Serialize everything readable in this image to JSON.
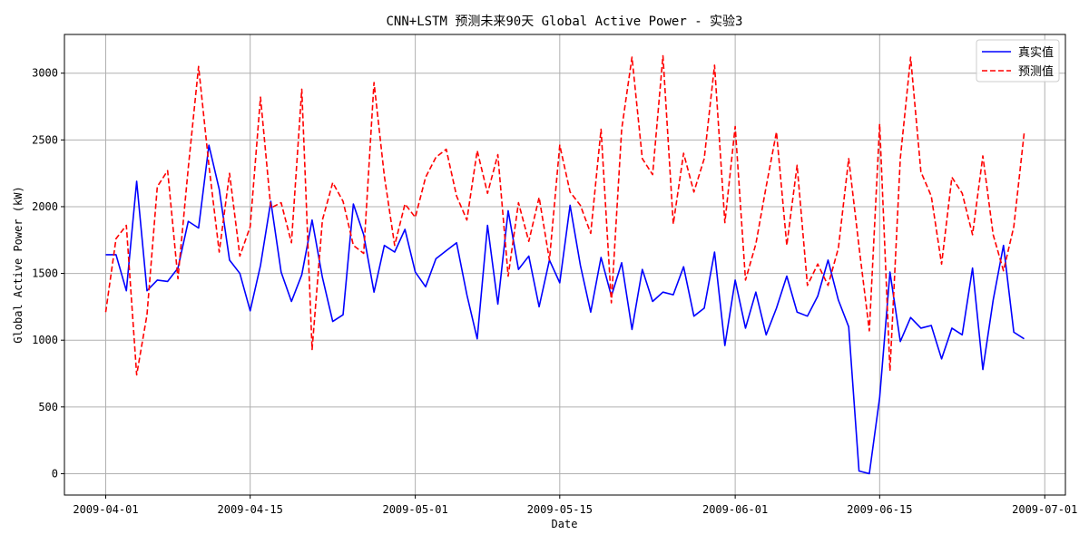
{
  "chart_data": {
    "type": "line",
    "title": "CNN+LSTM 预测未来90天 Global Active Power - 实验3",
    "xlabel": "Date",
    "ylabel": "Global Active Power (kW)",
    "x_start": "2009-04-01",
    "x_ticks": [
      "2009-04-01",
      "2009-04-15",
      "2009-05-01",
      "2009-05-15",
      "2009-06-01",
      "2009-06-15",
      "2009-07-01"
    ],
    "xlim": [
      "2009-03-28",
      "2009-07-03"
    ],
    "y_ticks": [
      0,
      500,
      1000,
      1500,
      2000,
      2500,
      3000
    ],
    "ylim": [
      -160,
      3290
    ],
    "grid": true,
    "legend_position": "top-right",
    "series": [
      {
        "name": "真实值",
        "color": "#0000ff",
        "style": "solid",
        "values": [
          1640,
          1640,
          1370,
          2190,
          1370,
          1450,
          1440,
          1540,
          1890,
          1840,
          2460,
          2130,
          1600,
          1500,
          1220,
          1560,
          2040,
          1510,
          1290,
          1490,
          1900,
          1470,
          1140,
          1190,
          2020,
          1790,
          1360,
          1710,
          1660,
          1830,
          1510,
          1400,
          1610,
          1670,
          1730,
          1340,
          1010,
          1860,
          1270,
          1970,
          1530,
          1630,
          1250,
          1600,
          1430,
          2010,
          1560,
          1210,
          1620,
          1330,
          1580,
          1080,
          1530,
          1290,
          1360,
          1340,
          1550,
          1180,
          1240,
          1660,
          960,
          1450,
          1090,
          1360,
          1040,
          1240,
          1480,
          1210,
          1180,
          1330,
          1600,
          1300,
          1100,
          20,
          0,
          570,
          1510,
          990,
          1170,
          1090,
          1110,
          860,
          1090,
          1040,
          1540,
          780,
          1300,
          1710,
          1060,
          1010
        ]
      },
      {
        "name": "预测值",
        "color": "#ff0000",
        "style": "dashed",
        "values": [
          1210,
          1760,
          1860,
          740,
          1190,
          2150,
          2270,
          1460,
          2290,
          3050,
          2310,
          1660,
          2250,
          1630,
          1850,
          2820,
          1990,
          2030,
          1730,
          2880,
          930,
          1900,
          2180,
          2040,
          1710,
          1650,
          2930,
          2230,
          1710,
          2020,
          1920,
          2220,
          2370,
          2430,
          2080,
          1900,
          2420,
          2100,
          2390,
          1480,
          2030,
          1740,
          2070,
          1600,
          2460,
          2110,
          2010,
          1800,
          2580,
          1280,
          2580,
          3120,
          2360,
          2240,
          3130,
          1870,
          2400,
          2110,
          2360,
          3060,
          1880,
          2600,
          1450,
          1720,
          2150,
          2560,
          1710,
          2310,
          1410,
          1570,
          1410,
          1690,
          2360,
          1700,
          1070,
          2620,
          770,
          2360,
          3120,
          2260,
          2080,
          1570,
          2220,
          2100,
          1790,
          2380,
          1790,
          1520,
          1850,
          2550
        ]
      }
    ]
  }
}
